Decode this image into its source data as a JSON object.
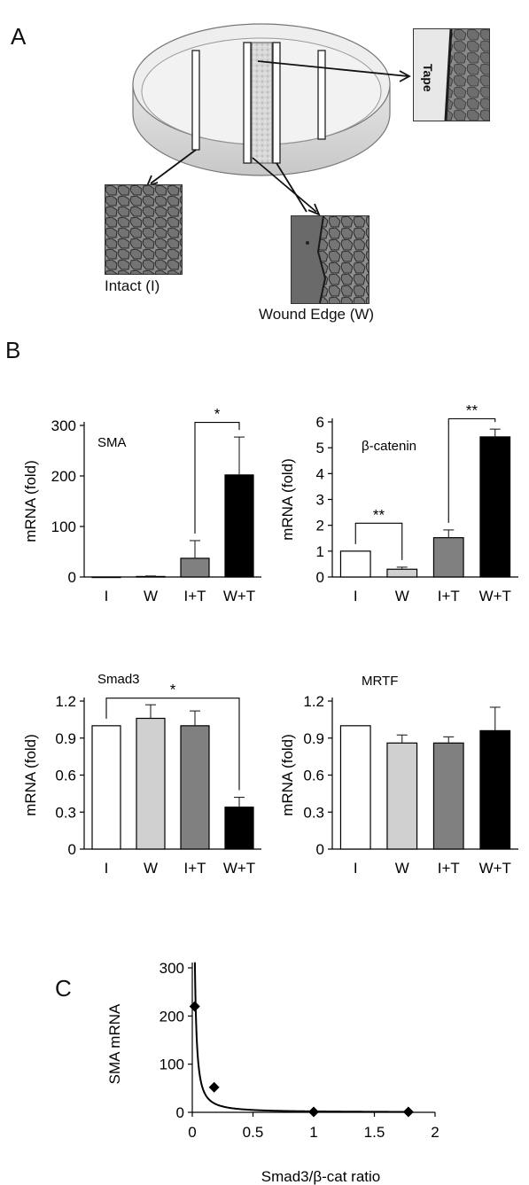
{
  "panels": {
    "a": "A",
    "b": "B",
    "c": "C"
  },
  "panel_a": {
    "tape_label": "Tape",
    "intact_caption": "Intact (I)",
    "wound_caption": "Wound Edge (W)"
  },
  "chart_data": [
    {
      "id": "sma",
      "type": "bar",
      "title": "SMA",
      "ylabel": "mRNA (fold)",
      "categories": [
        "I",
        "W",
        "I+T",
        "W+T"
      ],
      "values": [
        0,
        1,
        37,
        202
      ],
      "errors": [
        0,
        1,
        35,
        75
      ],
      "bar_colors": [
        "#ffffff",
        "#d0d0d0",
        "#808080",
        "#000000"
      ],
      "ylim": [
        0,
        300
      ],
      "yticks": [
        0,
        100,
        200,
        300
      ],
      "ytick_labels": [
        "0",
        "100",
        "200",
        "300"
      ],
      "significance": [
        {
          "from": 2,
          "to": 3,
          "label": "*"
        }
      ]
    },
    {
      "id": "bcat",
      "type": "bar",
      "title": "β-catenin",
      "ylabel": "mRNA (fold)",
      "categories": [
        "I",
        "W",
        "I+T",
        "W+T"
      ],
      "values": [
        1.0,
        0.3,
        1.52,
        5.42
      ],
      "errors": [
        0,
        0.08,
        0.3,
        0.3
      ],
      "bar_colors": [
        "#ffffff",
        "#d0d0d0",
        "#808080",
        "#000000"
      ],
      "ylim": [
        0,
        6
      ],
      "yticks": [
        0,
        1,
        2,
        3,
        4,
        5,
        6
      ],
      "ytick_labels": [
        "0",
        "1",
        "2",
        "3",
        "4",
        "5",
        "6"
      ],
      "significance": [
        {
          "from": 0,
          "to": 1,
          "label": "**"
        },
        {
          "from": 2,
          "to": 3,
          "label": "**"
        }
      ]
    },
    {
      "id": "smad3",
      "type": "bar",
      "title": "Smad3",
      "ylabel": "mRNA (fold)",
      "categories": [
        "I",
        "W",
        "I+T",
        "W+T"
      ],
      "values": [
        1.0,
        1.06,
        1.0,
        0.34
      ],
      "errors": [
        0,
        0.11,
        0.12,
        0.08
      ],
      "bar_colors": [
        "#ffffff",
        "#d0d0d0",
        "#808080",
        "#000000"
      ],
      "ylim": [
        0,
        1.2
      ],
      "yticks": [
        0,
        0.3,
        0.6,
        0.9,
        1.2
      ],
      "ytick_labels": [
        "0",
        "0.3",
        "0.6",
        "0.9",
        "1.2"
      ],
      "significance": [
        {
          "from": 0,
          "to": 3,
          "label": "*"
        }
      ]
    },
    {
      "id": "mrtf",
      "type": "bar",
      "title": "MRTF",
      "ylabel": "mRNA (fold)",
      "categories": [
        "I",
        "W",
        "I+T",
        "W+T"
      ],
      "values": [
        1.0,
        0.86,
        0.86,
        0.96
      ],
      "errors": [
        0,
        0.065,
        0.05,
        0.19
      ],
      "bar_colors": [
        "#ffffff",
        "#d0d0d0",
        "#808080",
        "#000000"
      ],
      "ylim": [
        0,
        1.2
      ],
      "yticks": [
        0,
        0.3,
        0.6,
        0.9,
        1.2
      ],
      "ytick_labels": [
        "0",
        "0.3",
        "0.6",
        "0.9",
        "1.2"
      ],
      "significance": []
    },
    {
      "id": "ratio",
      "type": "scatter",
      "xlabel": "Smad3/β-cat ratio",
      "ylabel": "SMA mRNA",
      "x": [
        0.02,
        0.18,
        1.0,
        1.78
      ],
      "y": [
        220,
        52,
        1,
        1
      ],
      "fit": "power",
      "xlim": [
        0,
        2
      ],
      "ylim": [
        0,
        300
      ],
      "xticks": [
        0,
        0.5,
        1,
        1.5,
        2
      ],
      "xtick_labels": [
        "0",
        "0.5",
        "1",
        "1.5",
        "2"
      ],
      "yticks": [
        0,
        100,
        200,
        300
      ],
      "ytick_labels": [
        "0",
        "100",
        "200",
        "300"
      ]
    }
  ]
}
